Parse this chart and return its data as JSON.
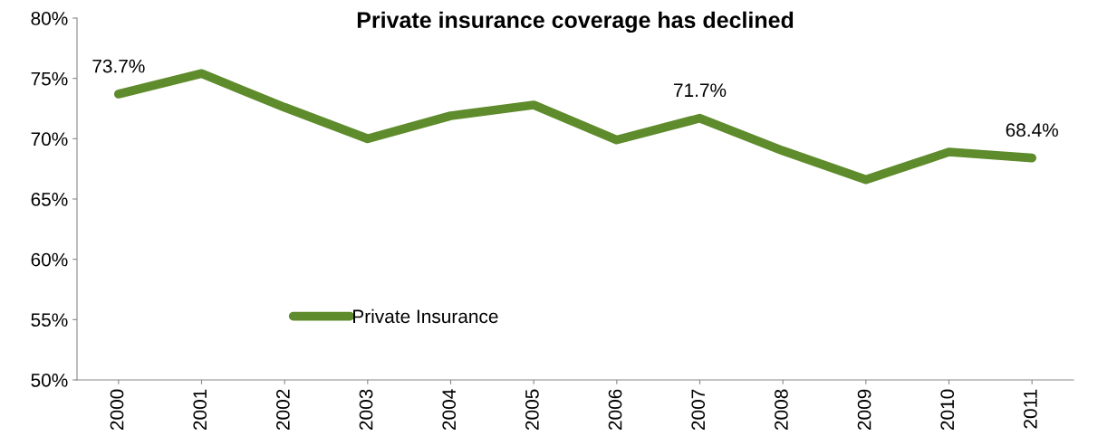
{
  "chart_data": {
    "type": "line",
    "title": "Private insurance coverage has declined",
    "categories": [
      "2000",
      "2001",
      "2002",
      "2003",
      "2004",
      "2005",
      "2006",
      "2007",
      "2008",
      "2009",
      "2010",
      "2011"
    ],
    "series": [
      {
        "name": "Private Insurance",
        "color": "#5e8b2b",
        "values": [
          73.7,
          75.4,
          72.6,
          70.0,
          71.9,
          72.8,
          69.9,
          71.7,
          69.0,
          66.6,
          68.9,
          68.4
        ],
        "value_labels": [
          "73.7%",
          null,
          null,
          null,
          null,
          null,
          null,
          "71.7%",
          null,
          null,
          null,
          "68.4%"
        ]
      }
    ],
    "ylim": [
      50,
      80
    ],
    "yticks": [
      {
        "value": 50,
        "label": "50%"
      },
      {
        "value": 55,
        "label": "55%"
      },
      {
        "value": 60,
        "label": "60%"
      },
      {
        "value": 65,
        "label": "65%"
      },
      {
        "value": 70,
        "label": "70%"
      },
      {
        "value": 75,
        "label": "75%"
      },
      {
        "value": 80,
        "label": "80%"
      }
    ],
    "grid": false,
    "legend": "bottom left",
    "marker": "none",
    "line_style": "solid"
  }
}
